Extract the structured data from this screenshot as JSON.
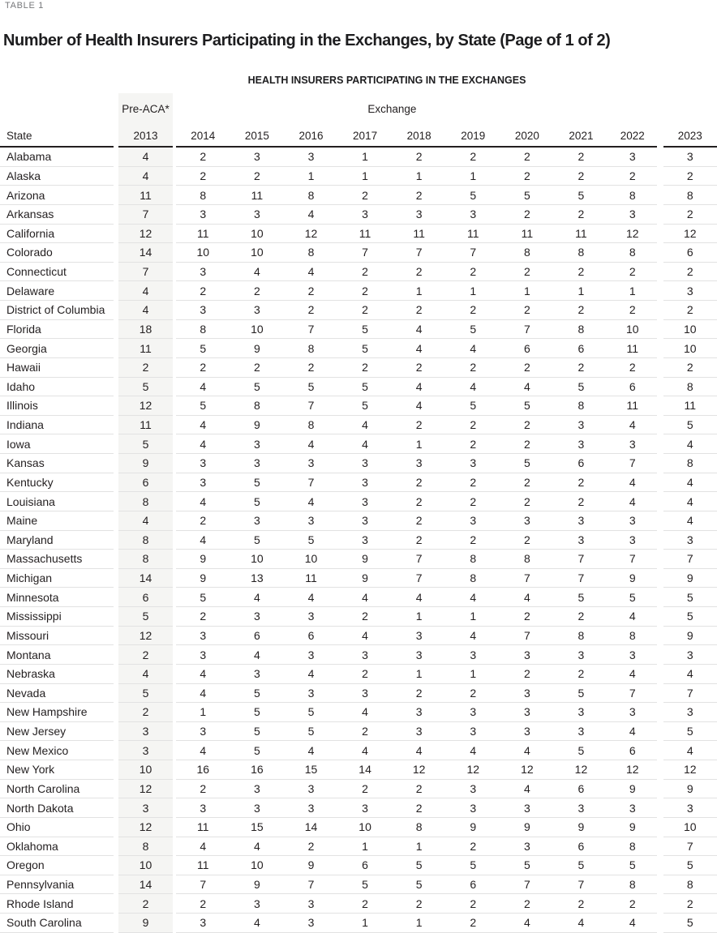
{
  "table_label": "TABLE 1",
  "title": "Number of Health Insurers Participating in the Exchanges, by State (Page of 1 of 2)",
  "table": {
    "heading": "HEALTH INSURERS PARTICIPATING IN THE EXCHANGES",
    "col_group_pre_aca": "Pre-ACA*",
    "col_group_exchange": "Exchange",
    "state_header": "State",
    "years": [
      "2013",
      "2014",
      "2015",
      "2016",
      "2017",
      "2018",
      "2019",
      "2020",
      "2021",
      "2022",
      "2023"
    ],
    "rows": [
      {
        "state": "Alabama",
        "values": [
          4,
          2,
          3,
          3,
          1,
          2,
          2,
          2,
          2,
          3,
          3
        ]
      },
      {
        "state": "Alaska",
        "values": [
          4,
          2,
          2,
          1,
          1,
          1,
          1,
          2,
          2,
          2,
          2
        ]
      },
      {
        "state": "Arizona",
        "values": [
          11,
          8,
          11,
          8,
          2,
          2,
          5,
          5,
          5,
          8,
          8
        ]
      },
      {
        "state": "Arkansas",
        "values": [
          7,
          3,
          3,
          4,
          3,
          3,
          3,
          2,
          2,
          3,
          2
        ]
      },
      {
        "state": "California",
        "values": [
          12,
          11,
          10,
          12,
          11,
          11,
          11,
          11,
          11,
          12,
          12
        ]
      },
      {
        "state": "Colorado",
        "values": [
          14,
          10,
          10,
          8,
          7,
          7,
          7,
          8,
          8,
          8,
          6
        ]
      },
      {
        "state": "Connecticut",
        "values": [
          7,
          3,
          4,
          4,
          2,
          2,
          2,
          2,
          2,
          2,
          2
        ]
      },
      {
        "state": "Delaware",
        "values": [
          4,
          2,
          2,
          2,
          2,
          1,
          1,
          1,
          1,
          1,
          3
        ]
      },
      {
        "state": "District of Columbia",
        "values": [
          4,
          3,
          3,
          2,
          2,
          2,
          2,
          2,
          2,
          2,
          2
        ]
      },
      {
        "state": "Florida",
        "values": [
          18,
          8,
          10,
          7,
          5,
          4,
          5,
          7,
          8,
          10,
          10
        ]
      },
      {
        "state": "Georgia",
        "values": [
          11,
          5,
          9,
          8,
          5,
          4,
          4,
          6,
          6,
          11,
          10
        ]
      },
      {
        "state": "Hawaii",
        "values": [
          2,
          2,
          2,
          2,
          2,
          2,
          2,
          2,
          2,
          2,
          2
        ]
      },
      {
        "state": "Idaho",
        "values": [
          5,
          4,
          5,
          5,
          5,
          4,
          4,
          4,
          5,
          6,
          8
        ]
      },
      {
        "state": "Illinois",
        "values": [
          12,
          5,
          8,
          7,
          5,
          4,
          5,
          5,
          8,
          11,
          11
        ]
      },
      {
        "state": "Indiana",
        "values": [
          11,
          4,
          9,
          8,
          4,
          2,
          2,
          2,
          3,
          4,
          5
        ]
      },
      {
        "state": "Iowa",
        "values": [
          5,
          4,
          3,
          4,
          4,
          1,
          2,
          2,
          3,
          3,
          4
        ]
      },
      {
        "state": "Kansas",
        "values": [
          9,
          3,
          3,
          3,
          3,
          3,
          3,
          5,
          6,
          7,
          8
        ]
      },
      {
        "state": "Kentucky",
        "values": [
          6,
          3,
          5,
          7,
          3,
          2,
          2,
          2,
          2,
          4,
          4
        ]
      },
      {
        "state": "Louisiana",
        "values": [
          8,
          4,
          5,
          4,
          3,
          2,
          2,
          2,
          2,
          4,
          4
        ]
      },
      {
        "state": "Maine",
        "values": [
          4,
          2,
          3,
          3,
          3,
          2,
          3,
          3,
          3,
          3,
          4
        ]
      },
      {
        "state": "Maryland",
        "values": [
          8,
          4,
          5,
          5,
          3,
          2,
          2,
          2,
          3,
          3,
          3
        ]
      },
      {
        "state": "Massachusetts",
        "values": [
          8,
          9,
          10,
          10,
          9,
          7,
          8,
          8,
          7,
          7,
          7
        ]
      },
      {
        "state": "Michigan",
        "values": [
          14,
          9,
          13,
          11,
          9,
          7,
          8,
          7,
          7,
          9,
          9
        ]
      },
      {
        "state": "Minnesota",
        "values": [
          6,
          5,
          4,
          4,
          4,
          4,
          4,
          4,
          5,
          5,
          5
        ]
      },
      {
        "state": "Mississippi",
        "values": [
          5,
          2,
          3,
          3,
          2,
          1,
          1,
          2,
          2,
          4,
          5
        ]
      },
      {
        "state": "Missouri",
        "values": [
          12,
          3,
          6,
          6,
          4,
          3,
          4,
          7,
          8,
          8,
          9
        ]
      },
      {
        "state": "Montana",
        "values": [
          2,
          3,
          4,
          3,
          3,
          3,
          3,
          3,
          3,
          3,
          3
        ]
      },
      {
        "state": "Nebraska",
        "values": [
          4,
          4,
          3,
          4,
          2,
          1,
          1,
          2,
          2,
          4,
          4
        ]
      },
      {
        "state": "Nevada",
        "values": [
          5,
          4,
          5,
          3,
          3,
          2,
          2,
          3,
          5,
          7,
          7
        ]
      },
      {
        "state": "New Hampshire",
        "values": [
          2,
          1,
          5,
          5,
          4,
          3,
          3,
          3,
          3,
          3,
          3
        ]
      },
      {
        "state": "New Jersey",
        "values": [
          3,
          3,
          5,
          5,
          2,
          3,
          3,
          3,
          3,
          4,
          5
        ]
      },
      {
        "state": "New Mexico",
        "values": [
          3,
          4,
          5,
          4,
          4,
          4,
          4,
          4,
          5,
          6,
          4
        ]
      },
      {
        "state": "New York",
        "values": [
          10,
          16,
          16,
          15,
          14,
          12,
          12,
          12,
          12,
          12,
          12
        ]
      },
      {
        "state": "North Carolina",
        "values": [
          12,
          2,
          3,
          3,
          2,
          2,
          3,
          4,
          6,
          9,
          9
        ]
      },
      {
        "state": "North Dakota",
        "values": [
          3,
          3,
          3,
          3,
          3,
          2,
          3,
          3,
          3,
          3,
          3
        ]
      },
      {
        "state": "Ohio",
        "values": [
          12,
          11,
          15,
          14,
          10,
          8,
          9,
          9,
          9,
          9,
          10
        ]
      },
      {
        "state": "Oklahoma",
        "values": [
          8,
          4,
          4,
          2,
          1,
          1,
          2,
          3,
          6,
          8,
          7
        ]
      },
      {
        "state": "Oregon",
        "values": [
          10,
          11,
          10,
          9,
          6,
          5,
          5,
          5,
          5,
          5,
          5
        ]
      },
      {
        "state": "Pennsylvania",
        "values": [
          14,
          7,
          9,
          7,
          5,
          5,
          6,
          7,
          7,
          8,
          8
        ]
      },
      {
        "state": "Rhode Island",
        "values": [
          2,
          2,
          3,
          3,
          2,
          2,
          2,
          2,
          2,
          2,
          2
        ]
      },
      {
        "state": "South Carolina",
        "values": [
          9,
          3,
          4,
          3,
          1,
          1,
          2,
          4,
          4,
          4,
          5
        ]
      }
    ]
  },
  "colors": {
    "text": "#231f20",
    "muted_label": "#77787b",
    "row_line": "#e2e2e2",
    "header_rule": "#231f20",
    "shaded_column": "#f5f5f3",
    "background": "#ffffff"
  }
}
